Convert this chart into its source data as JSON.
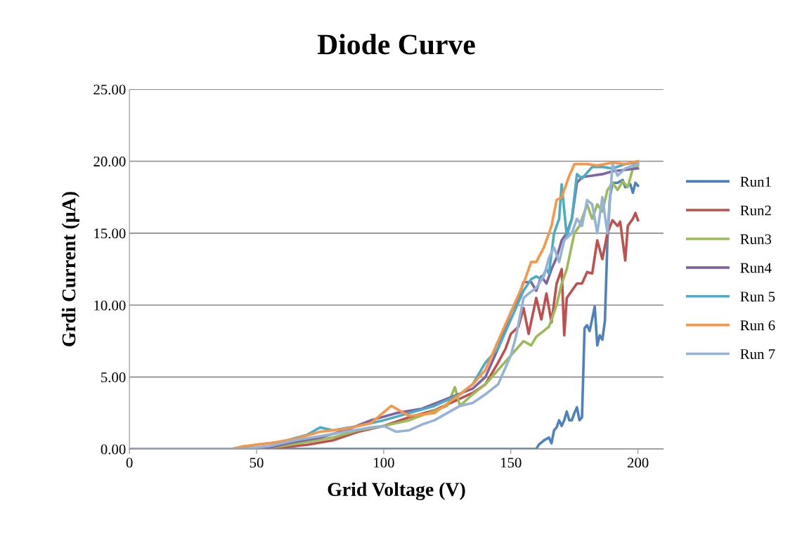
{
  "chart_data": {
    "type": "line",
    "title": "Diode Curve",
    "xlabel": "Grid Voltage (V)",
    "ylabel": "Grdi Current (µA)",
    "xlim": [
      0,
      210
    ],
    "xticks": [
      0,
      50,
      100,
      150,
      200
    ],
    "ylim": [
      0,
      25
    ],
    "yticks": [
      {
        "value": 0,
        "label": "0.00"
      },
      {
        "value": 5,
        "label": "5.00"
      },
      {
        "value": 10,
        "label": "10.00"
      },
      {
        "value": 15,
        "label": "15.00"
      },
      {
        "value": 20,
        "label": "20.00"
      },
      {
        "value": 25,
        "label": "25.00"
      }
    ],
    "grid": "y",
    "legend": "right",
    "marker": "none",
    "line_style": "solid",
    "series": [
      {
        "name": "Run1",
        "color": "#4f81bd",
        "x": [
          0,
          50,
          100,
          160,
          161,
          163,
          165,
          166,
          167,
          168,
          169,
          170,
          171,
          172,
          173,
          174,
          175,
          176,
          177,
          178,
          179,
          180,
          181,
          183,
          184,
          185,
          186,
          187,
          188,
          189,
          190,
          192,
          194,
          195,
          197,
          198,
          199,
          200
        ],
        "values": [
          0,
          0,
          0,
          0,
          0.3,
          0.6,
          0.8,
          0.4,
          1.3,
          1.5,
          2.0,
          1.6,
          2.0,
          2.6,
          2.0,
          2.0,
          2.5,
          2.9,
          2.0,
          2.2,
          8.4,
          8.6,
          8.2,
          9.9,
          7.2,
          7.9,
          7.6,
          8.9,
          14.5,
          17.5,
          18.5,
          18.5,
          18.7,
          18.2,
          18.4,
          17.8,
          18.5,
          18.3
        ]
      },
      {
        "name": "Run2",
        "color": "#c0504d",
        "x": [
          0,
          55,
          60,
          70,
          80,
          90,
          100,
          110,
          120,
          130,
          135,
          140,
          145,
          148,
          150,
          153,
          155,
          157,
          160,
          162,
          164,
          166,
          168,
          170,
          171,
          172,
          174,
          176,
          178,
          180,
          182,
          184,
          186,
          188,
          190,
          192,
          193,
          195,
          196,
          198,
          199,
          200
        ],
        "values": [
          0,
          0,
          0.1,
          0.3,
          0.6,
          1.2,
          1.6,
          2.2,
          2.7,
          3.5,
          3.9,
          4.5,
          6.0,
          7.0,
          8.0,
          8.5,
          9.8,
          8.0,
          10.5,
          9.0,
          10.8,
          8.8,
          11.5,
          12.5,
          7.9,
          10.5,
          11.0,
          11.5,
          11.5,
          12.3,
          12.2,
          14.5,
          13.2,
          15.0,
          15.9,
          15.5,
          15.8,
          13.1,
          15.5,
          16.0,
          16.4,
          15.9
        ]
      },
      {
        "name": "Run3",
        "color": "#9bbb59",
        "x": [
          0,
          50,
          60,
          70,
          80,
          90,
          100,
          110,
          125,
          128,
          130,
          135,
          140,
          145,
          150,
          155,
          158,
          160,
          165,
          168,
          170,
          172,
          175,
          177,
          180,
          182,
          184,
          186,
          188,
          190,
          192,
          194,
          196,
          198,
          200
        ],
        "values": [
          0,
          0,
          0.2,
          0.5,
          0.8,
          1.3,
          1.6,
          2.0,
          3.0,
          4.3,
          3.0,
          3.8,
          4.5,
          5.5,
          6.5,
          7.5,
          7.2,
          7.8,
          8.5,
          10.0,
          11.5,
          12.5,
          15.0,
          15.5,
          17.0,
          16.0,
          17.0,
          16.5,
          18.0,
          18.5,
          18.0,
          18.6,
          18.2,
          19.5,
          19.7
        ]
      },
      {
        "name": "Run4",
        "color": "#8064a2",
        "x": [
          0,
          45,
          55,
          65,
          75,
          85,
          95,
          105,
          115,
          125,
          135,
          140,
          145,
          148,
          150,
          153,
          155,
          158,
          160,
          162,
          164,
          166,
          168,
          170,
          172,
          174,
          176,
          178,
          182,
          186,
          190,
          195,
          200
        ],
        "values": [
          0,
          0,
          0.1,
          0.5,
          0.8,
          1.3,
          2.0,
          2.5,
          2.8,
          3.5,
          4.2,
          5.0,
          7.0,
          8.5,
          9.5,
          10.5,
          11.6,
          11.6,
          11.0,
          12.0,
          11.5,
          12.5,
          13.3,
          14.5,
          15.0,
          16.0,
          18.5,
          18.9,
          19.0,
          19.1,
          19.3,
          19.4,
          19.5
        ]
      },
      {
        "name": "Run 5",
        "color": "#4bacc6",
        "x": [
          0,
          40,
          45,
          50,
          60,
          70,
          75,
          80,
          90,
          100,
          110,
          120,
          130,
          135,
          140,
          145,
          148,
          150,
          155,
          158,
          160,
          162,
          164,
          165,
          167,
          169,
          170,
          172,
          174,
          176,
          178,
          182,
          186,
          190,
          195,
          200
        ],
        "values": [
          0,
          0,
          0.1,
          0.3,
          0.5,
          1.0,
          1.5,
          1.3,
          1.6,
          2.0,
          2.5,
          3.0,
          3.8,
          4.5,
          6.0,
          7.0,
          8.2,
          9.0,
          11.0,
          11.8,
          12.0,
          11.8,
          12.5,
          12.2,
          15.0,
          16.0,
          18.4,
          14.8,
          16.0,
          19.1,
          18.8,
          19.6,
          19.6,
          19.5,
          19.8,
          19.9
        ]
      },
      {
        "name": "Run 6",
        "color": "#f79646",
        "x": [
          0,
          40,
          45,
          55,
          65,
          75,
          85,
          95,
          103,
          110,
          120,
          130,
          135,
          140,
          145,
          150,
          155,
          158,
          160,
          163,
          166,
          168,
          170,
          173,
          175,
          180,
          184,
          190,
          195,
          200
        ],
        "values": [
          0,
          0,
          0.2,
          0.4,
          0.7,
          1.2,
          1.4,
          1.8,
          3.0,
          2.3,
          2.5,
          3.8,
          4.5,
          5.5,
          7.5,
          9.5,
          11.5,
          13.0,
          13.0,
          14.0,
          15.5,
          17.3,
          17.5,
          19.0,
          19.8,
          19.8,
          19.7,
          19.9,
          19.8,
          20.0
        ]
      },
      {
        "name": "Run 7",
        "color": "#95b3d7",
        "x": [
          0,
          45,
          55,
          65,
          75,
          85,
          95,
          100,
          105,
          110,
          115,
          120,
          125,
          130,
          135,
          140,
          145,
          150,
          152,
          155,
          157,
          160,
          163,
          165,
          167,
          169,
          171,
          174,
          176,
          178,
          180,
          182,
          184,
          186,
          188,
          190,
          192,
          195,
          200
        ],
        "values": [
          0,
          0,
          0.2,
          0.6,
          0.9,
          1.2,
          1.5,
          1.6,
          1.2,
          1.3,
          1.7,
          2.0,
          2.5,
          3.0,
          3.2,
          3.8,
          4.5,
          6.5,
          7.8,
          10.5,
          10.8,
          11.2,
          12.0,
          13.3,
          14.0,
          13.0,
          14.5,
          15.0,
          16.0,
          15.5,
          17.3,
          17.0,
          15.0,
          17.5,
          15.0,
          19.8,
          19.0,
          19.5,
          19.8
        ]
      }
    ]
  }
}
